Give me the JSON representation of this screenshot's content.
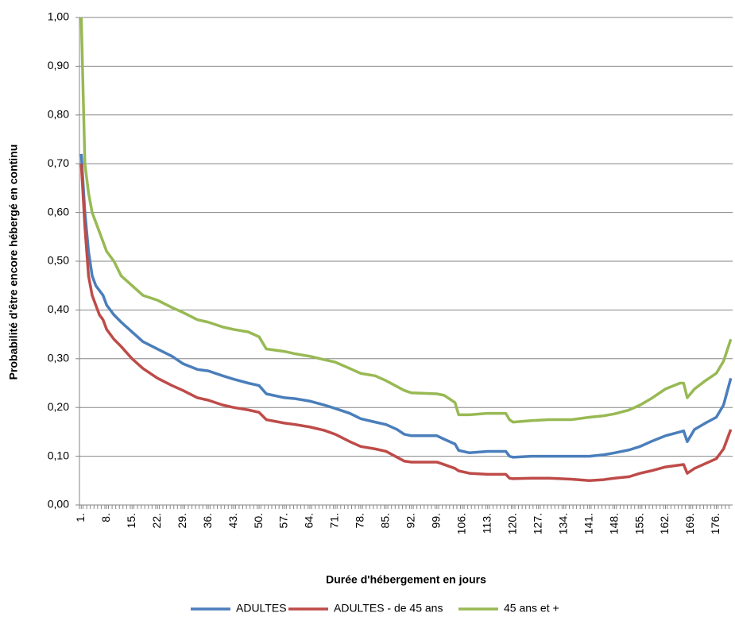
{
  "chart_data": {
    "type": "line",
    "xlabel": "Durée d'hébergement en jours",
    "ylabel": "Probabilité d'être encore hébergé en continu",
    "x": [
      1,
      2,
      3,
      4,
      5,
      6,
      7,
      8,
      10,
      12,
      15,
      18,
      22,
      26,
      29,
      33,
      36,
      40,
      43,
      47,
      50,
      52,
      57,
      60,
      64,
      68,
      71,
      75,
      78,
      82,
      85,
      88,
      90,
      92,
      99,
      101,
      104,
      105,
      108,
      113,
      118,
      119,
      120,
      125,
      130,
      136,
      141,
      145,
      148,
      152,
      155,
      158,
      162,
      166,
      167,
      168,
      170,
      173,
      176,
      178,
      180
    ],
    "series": [
      {
        "name": "ADULTES",
        "color": "#4a7ebb",
        "values": [
          0.72,
          0.6,
          0.52,
          0.47,
          0.45,
          0.44,
          0.43,
          0.41,
          0.39,
          0.375,
          0.355,
          0.335,
          0.32,
          0.305,
          0.29,
          0.278,
          0.275,
          0.265,
          0.258,
          0.25,
          0.245,
          0.228,
          0.22,
          0.218,
          0.213,
          0.205,
          0.198,
          0.188,
          0.177,
          0.17,
          0.165,
          0.155,
          0.145,
          0.142,
          0.142,
          0.135,
          0.125,
          0.112,
          0.107,
          0.11,
          0.11,
          0.1,
          0.098,
          0.1,
          0.1,
          0.1,
          0.1,
          0.103,
          0.107,
          0.113,
          0.12,
          0.13,
          0.142,
          0.15,
          0.152,
          0.13,
          0.155,
          0.168,
          0.18,
          0.205,
          0.26
        ]
      },
      {
        "name": "ADULTES - de 45 ans",
        "color": "#be4b48",
        "values": [
          0.7,
          0.57,
          0.47,
          0.43,
          0.41,
          0.39,
          0.38,
          0.36,
          0.34,
          0.325,
          0.3,
          0.28,
          0.26,
          0.245,
          0.235,
          0.22,
          0.215,
          0.205,
          0.2,
          0.195,
          0.19,
          0.175,
          0.168,
          0.165,
          0.16,
          0.153,
          0.145,
          0.13,
          0.12,
          0.115,
          0.11,
          0.098,
          0.09,
          0.088,
          0.088,
          0.083,
          0.075,
          0.07,
          0.065,
          0.063,
          0.063,
          0.055,
          0.054,
          0.055,
          0.055,
          0.053,
          0.05,
          0.052,
          0.055,
          0.058,
          0.065,
          0.07,
          0.078,
          0.082,
          0.083,
          0.065,
          0.075,
          0.085,
          0.095,
          0.115,
          0.155
        ]
      },
      {
        "name": "45 ans et +",
        "color": "#98b954",
        "values": [
          1.0,
          0.7,
          0.64,
          0.6,
          0.58,
          0.56,
          0.54,
          0.52,
          0.5,
          0.47,
          0.45,
          0.43,
          0.42,
          0.405,
          0.395,
          0.38,
          0.375,
          0.365,
          0.36,
          0.355,
          0.345,
          0.32,
          0.315,
          0.31,
          0.305,
          0.298,
          0.293,
          0.28,
          0.27,
          0.265,
          0.255,
          0.243,
          0.235,
          0.23,
          0.228,
          0.225,
          0.21,
          0.185,
          0.185,
          0.188,
          0.188,
          0.175,
          0.17,
          0.173,
          0.175,
          0.175,
          0.18,
          0.183,
          0.187,
          0.195,
          0.205,
          0.218,
          0.238,
          0.25,
          0.25,
          0.22,
          0.238,
          0.255,
          0.27,
          0.295,
          0.34
        ]
      }
    ],
    "xlim": [
      0.5,
      180.5
    ],
    "xticks": [
      {
        "value": 1,
        "label": "1."
      },
      {
        "value": 8,
        "label": "8."
      },
      {
        "value": 15,
        "label": "15."
      },
      {
        "value": 22,
        "label": "22."
      },
      {
        "value": 29,
        "label": "29."
      },
      {
        "value": 36,
        "label": "36."
      },
      {
        "value": 43,
        "label": "43."
      },
      {
        "value": 50,
        "label": "50."
      },
      {
        "value": 57,
        "label": "57."
      },
      {
        "value": 64,
        "label": "64."
      },
      {
        "value": 71,
        "label": "71."
      },
      {
        "value": 78,
        "label": "78."
      },
      {
        "value": 85,
        "label": "85."
      },
      {
        "value": 92,
        "label": "92."
      },
      {
        "value": 99,
        "label": "99."
      },
      {
        "value": 106,
        "label": "106."
      },
      {
        "value": 113,
        "label": "113."
      },
      {
        "value": 120,
        "label": "120."
      },
      {
        "value": 127,
        "label": "127."
      },
      {
        "value": 134,
        "label": "134."
      },
      {
        "value": 141,
        "label": "141."
      },
      {
        "value": 148,
        "label": "148."
      },
      {
        "value": 155,
        "label": "155."
      },
      {
        "value": 162,
        "label": "162."
      },
      {
        "value": 169,
        "label": "169."
      },
      {
        "value": 176,
        "label": "176."
      }
    ],
    "ylim": [
      0,
      1
    ],
    "yticks": [
      {
        "value": 0,
        "label": "0,00"
      },
      {
        "value": 0.1,
        "label": "0,10"
      },
      {
        "value": 0.2,
        "label": "0,20"
      },
      {
        "value": 0.3,
        "label": "0,30"
      },
      {
        "value": 0.4,
        "label": "0,40"
      },
      {
        "value": 0.5,
        "label": "0,50"
      },
      {
        "value": 0.6,
        "label": "0,60"
      },
      {
        "value": 0.7,
        "label": "0,70"
      },
      {
        "value": 0.8,
        "label": "0,80"
      },
      {
        "value": 0.9,
        "label": "0,90"
      },
      {
        "value": 1,
        "label": "1,00"
      }
    ],
    "grid": true,
    "legend": "bottom"
  }
}
